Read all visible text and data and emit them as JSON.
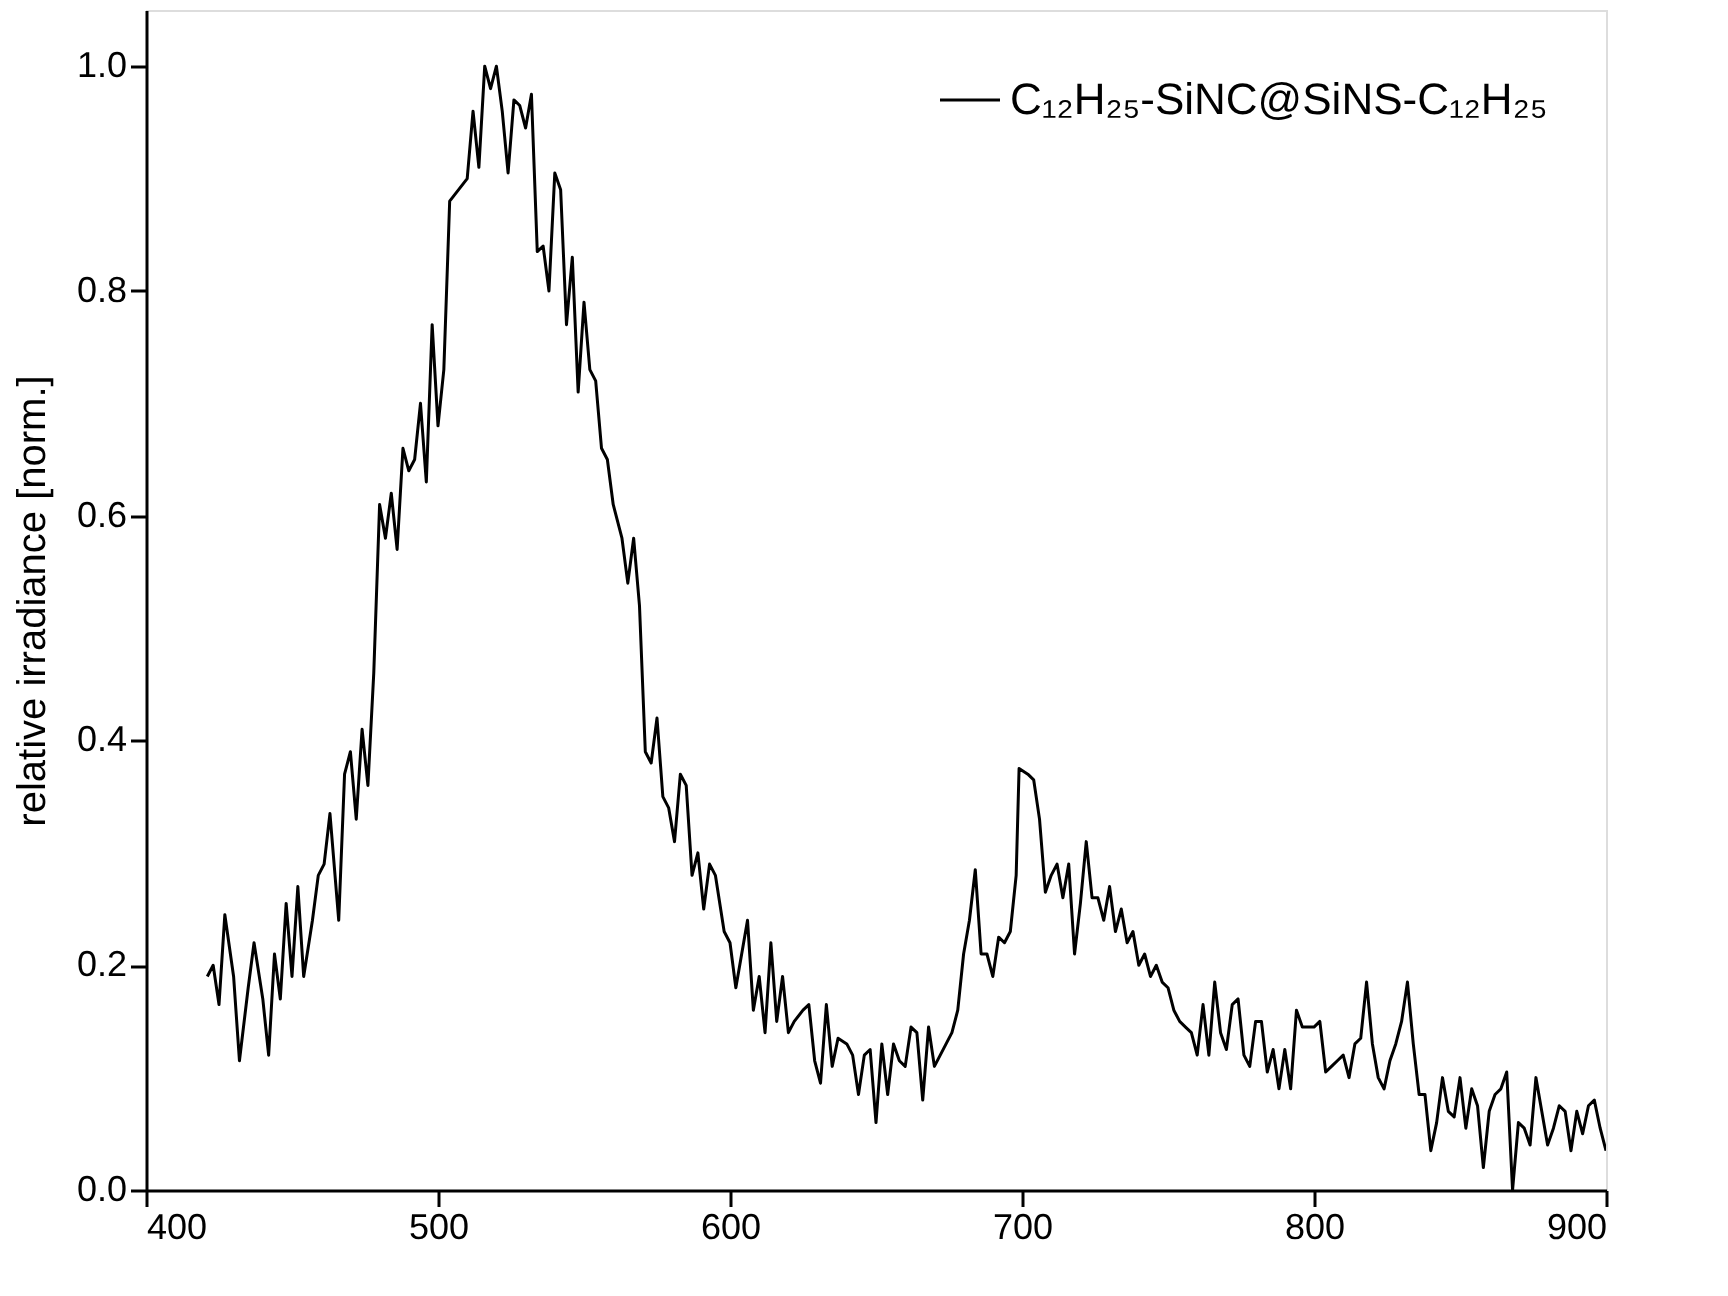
{
  "chart_data": {
    "type": "line",
    "ylabel": "relative irradiance [norm.]",
    "xlim": [
      400,
      900
    ],
    "xticks": [
      400,
      500,
      600,
      700,
      800,
      900
    ],
    "ylim": [
      0.0,
      1.05
    ],
    "yticks": [
      {
        "value": 0,
        "label": "0.0"
      },
      {
        "value": 0.2,
        "label": "0.2"
      },
      {
        "value": 0.4,
        "label": "0.4"
      },
      {
        "value": 0.6,
        "label": "0.6"
      },
      {
        "value": 0.8,
        "label": "0.8"
      },
      {
        "value": 1,
        "label": "1.0"
      }
    ],
    "grid": false,
    "legend": "top right",
    "marker": "none",
    "line_style": "solid",
    "x": [
      421,
      423,
      425,
      427,
      430,
      432,
      435,
      437,
      440,
      442,
      444,
      446,
      448,
      450,
      452,
      454,
      457,
      459,
      461,
      463,
      466,
      468,
      470,
      472,
      474,
      476,
      478,
      480,
      482,
      484,
      486,
      488,
      490,
      492,
      494,
      496,
      498,
      500,
      502,
      504,
      507,
      510,
      512,
      514,
      516,
      518,
      520,
      522,
      524,
      526,
      528,
      530,
      532,
      534,
      536,
      538,
      540,
      542,
      544,
      546,
      548,
      550,
      552,
      554,
      556,
      558,
      560,
      563,
      565,
      567,
      569,
      571,
      573,
      575,
      577,
      579,
      581,
      583,
      585,
      587,
      589,
      591,
      593,
      595,
      598,
      600,
      602,
      604,
      606,
      608,
      610,
      612,
      614,
      616,
      618,
      620,
      622,
      625,
      627,
      629,
      631,
      633,
      635,
      637,
      640,
      642,
      644,
      646,
      648,
      650,
      652,
      654,
      656,
      658,
      660,
      662,
      664,
      666,
      668,
      670,
      672,
      674,
      676,
      678,
      680,
      682,
      684,
      686,
      688,
      690,
      692,
      694,
      696,
      698,
      699,
      702,
      704,
      706,
      708,
      710,
      712,
      714,
      716,
      718,
      720,
      722,
      724,
      726,
      728,
      730,
      732,
      734,
      736,
      738,
      740,
      742,
      744,
      746,
      748,
      750,
      752,
      754,
      756,
      758,
      760,
      762,
      764,
      766,
      768,
      770,
      772,
      774,
      776,
      778,
      780,
      782,
      784,
      786,
      788,
      790,
      792,
      794,
      796,
      798,
      800,
      802,
      804,
      806,
      808,
      810,
      812,
      814,
      816,
      818,
      820,
      822,
      824,
      826,
      828,
      830,
      832,
      834,
      836,
      838,
      840,
      842,
      844,
      846,
      848,
      850,
      852,
      854,
      856,
      858,
      860,
      862,
      864,
      866,
      868,
      870,
      872,
      874,
      876,
      878,
      880,
      882,
      884,
      886,
      888,
      890,
      892,
      894,
      896,
      898,
      900
    ],
    "series": [
      {
        "name": "C₁₂H₂₅-SiNC@SiNS-C₁₂H₂₅",
        "color": "#000000",
        "values": [
          0.19,
          0.2,
          0.165,
          0.245,
          0.19,
          0.115,
          0.18,
          0.22,
          0.17,
          0.12,
          0.21,
          0.17,
          0.255,
          0.19,
          0.27,
          0.19,
          0.24,
          0.28,
          0.29,
          0.335,
          0.24,
          0.37,
          0.39,
          0.33,
          0.41,
          0.36,
          0.46,
          0.61,
          0.58,
          0.62,
          0.57,
          0.66,
          0.64,
          0.65,
          0.7,
          0.63,
          0.77,
          0.68,
          0.73,
          0.88,
          0.89,
          0.9,
          0.96,
          0.91,
          1.0,
          0.98,
          1.0,
          0.96,
          0.905,
          0.97,
          0.965,
          0.945,
          0.975,
          0.835,
          0.84,
          0.8,
          0.905,
          0.89,
          0.77,
          0.83,
          0.71,
          0.79,
          0.73,
          0.72,
          0.66,
          0.65,
          0.61,
          0.58,
          0.54,
          0.58,
          0.52,
          0.39,
          0.38,
          0.42,
          0.35,
          0.34,
          0.31,
          0.37,
          0.36,
          0.28,
          0.3,
          0.25,
          0.29,
          0.28,
          0.23,
          0.22,
          0.18,
          0.21,
          0.24,
          0.16,
          0.19,
          0.14,
          0.22,
          0.15,
          0.19,
          0.14,
          0.15,
          0.16,
          0.165,
          0.115,
          0.095,
          0.165,
          0.11,
          0.135,
          0.13,
          0.12,
          0.085,
          0.12,
          0.125,
          0.06,
          0.13,
          0.085,
          0.13,
          0.115,
          0.11,
          0.145,
          0.14,
          0.08,
          0.145,
          0.11,
          0.12,
          0.13,
          0.14,
          0.16,
          0.21,
          0.24,
          0.285,
          0.21,
          0.21,
          0.19,
          0.225,
          0.22,
          0.23,
          0.28,
          0.375,
          0.37,
          0.365,
          0.33,
          0.265,
          0.28,
          0.29,
          0.26,
          0.29,
          0.21,
          0.255,
          0.31,
          0.26,
          0.26,
          0.24,
          0.27,
          0.23,
          0.25,
          0.22,
          0.23,
          0.2,
          0.21,
          0.19,
          0.2,
          0.185,
          0.18,
          0.16,
          0.15,
          0.145,
          0.14,
          0.12,
          0.165,
          0.12,
          0.185,
          0.14,
          0.125,
          0.165,
          0.17,
          0.12,
          0.11,
          0.15,
          0.15,
          0.105,
          0.125,
          0.09,
          0.125,
          0.09,
          0.16,
          0.145,
          0.145,
          0.145,
          0.15,
          0.105,
          0.11,
          0.115,
          0.12,
          0.1,
          0.13,
          0.135,
          0.185,
          0.13,
          0.1,
          0.09,
          0.115,
          0.13,
          0.15,
          0.185,
          0.13,
          0.085,
          0.085,
          0.035,
          0.06,
          0.1,
          0.07,
          0.065,
          0.1,
          0.055,
          0.09,
          0.075,
          0.02,
          0.07,
          0.085,
          0.09,
          0.105,
          0.0,
          0.06,
          0.055,
          0.04,
          0.1,
          0.07,
          0.04,
          0.055,
          0.075,
          0.07,
          0.035,
          0.07,
          0.05,
          0.075,
          0.08,
          0.055,
          0.035
        ]
      }
    ]
  }
}
